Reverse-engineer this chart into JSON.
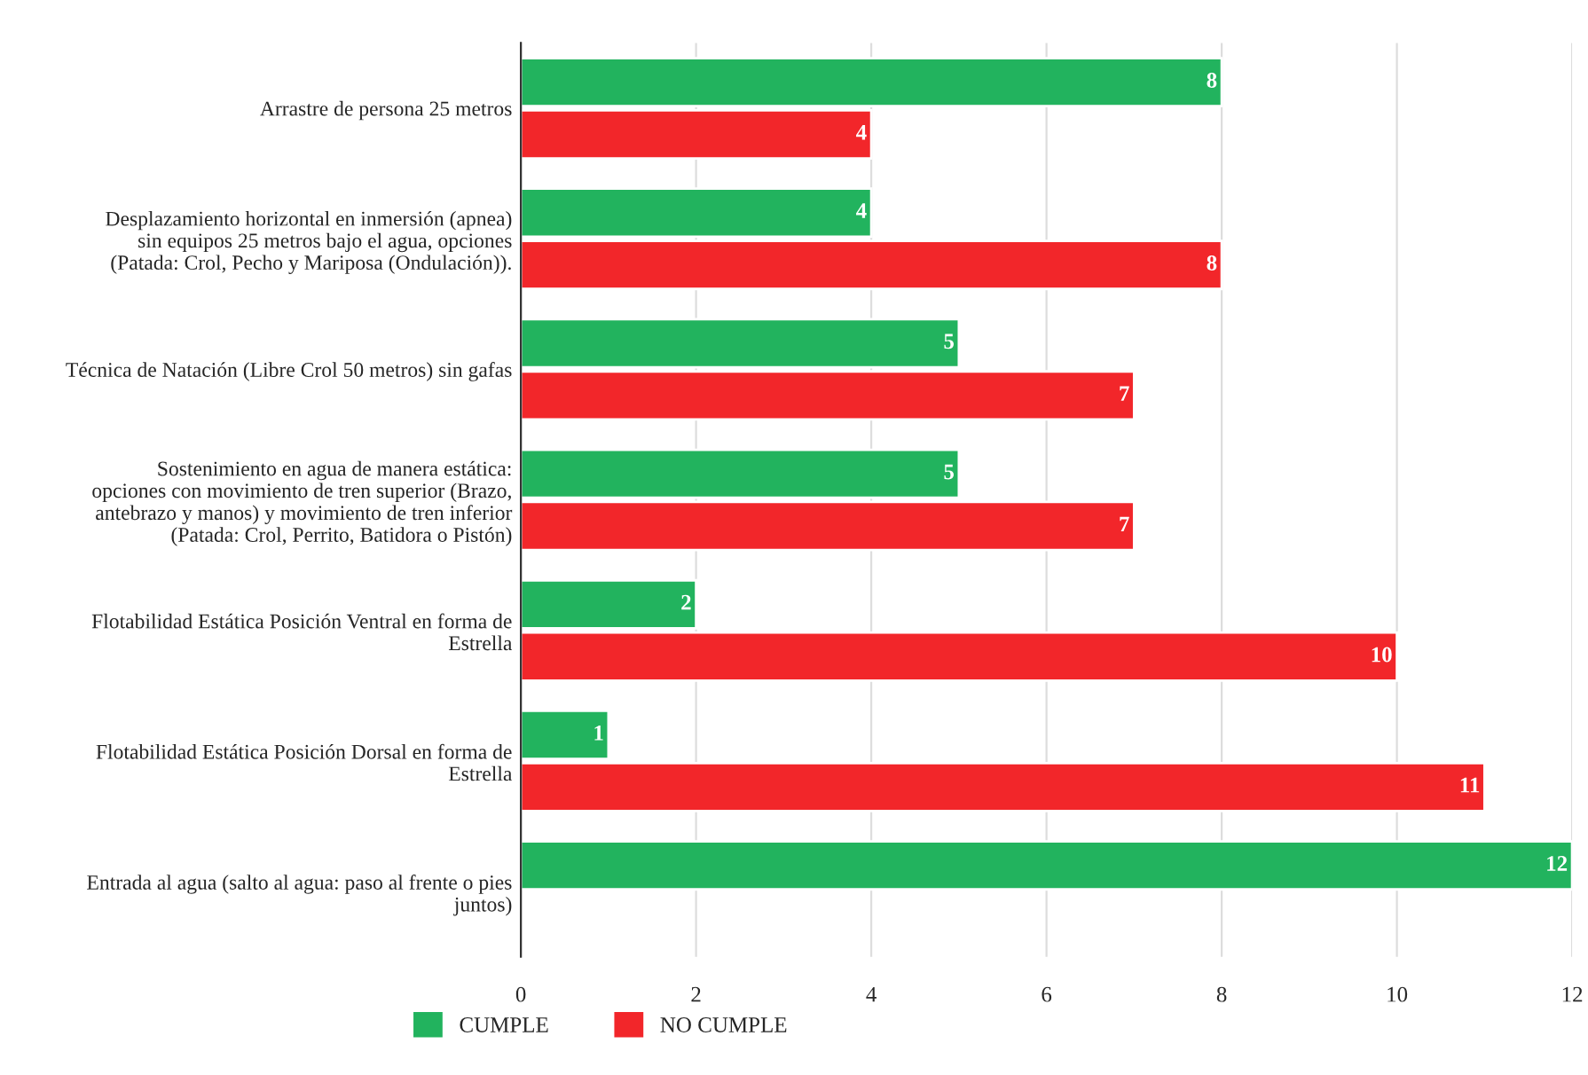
{
  "chart_data": {
    "type": "bar",
    "orientation": "horizontal",
    "categories": [
      "Arrastre de persona 25 metros",
      "Desplazamiento horizontal en inmersión (apnea)\nsin equipos 25 metros bajo el agua, opciones\n(Patada: Crol, Pecho y Mariposa (Ondulación)).",
      "Técnica de Natación (Libre Crol 50 metros) sin gafas",
      "Sostenimiento en agua de manera estática:\nopciones con movimiento de tren superior (Brazo,\nantebrazo y manos) y movimiento de tren inferior\n(Patada: Crol, Perrito, Batidora o Pistón)",
      "Flotabilidad Estática Posición Ventral en forma de\nEstrella",
      "Flotabilidad Estática Posición Dorsal en forma de\nEstrella",
      "Entrada al agua (salto al agua: paso al frente o pies\njuntos)"
    ],
    "series": [
      {
        "name": "CUMPLE",
        "color": "#22b35e",
        "values": [
          8,
          4,
          5,
          5,
          2,
          1,
          12
        ],
        "value_labels": [
          "8",
          "4",
          "5",
          "5",
          "2",
          "1",
          "12"
        ]
      },
      {
        "name": "NO CUMPLE",
        "color": "#f2262a",
        "values": [
          4,
          8,
          7,
          7,
          10,
          11,
          null
        ],
        "value_labels": [
          "4",
          "8",
          "7",
          "7",
          "10",
          "11",
          null
        ]
      }
    ],
    "xlim": [
      0,
      12
    ],
    "xticks": [
      0,
      2,
      4,
      6,
      8,
      10,
      12
    ],
    "grid": "x",
    "legend": "bottom left"
  }
}
